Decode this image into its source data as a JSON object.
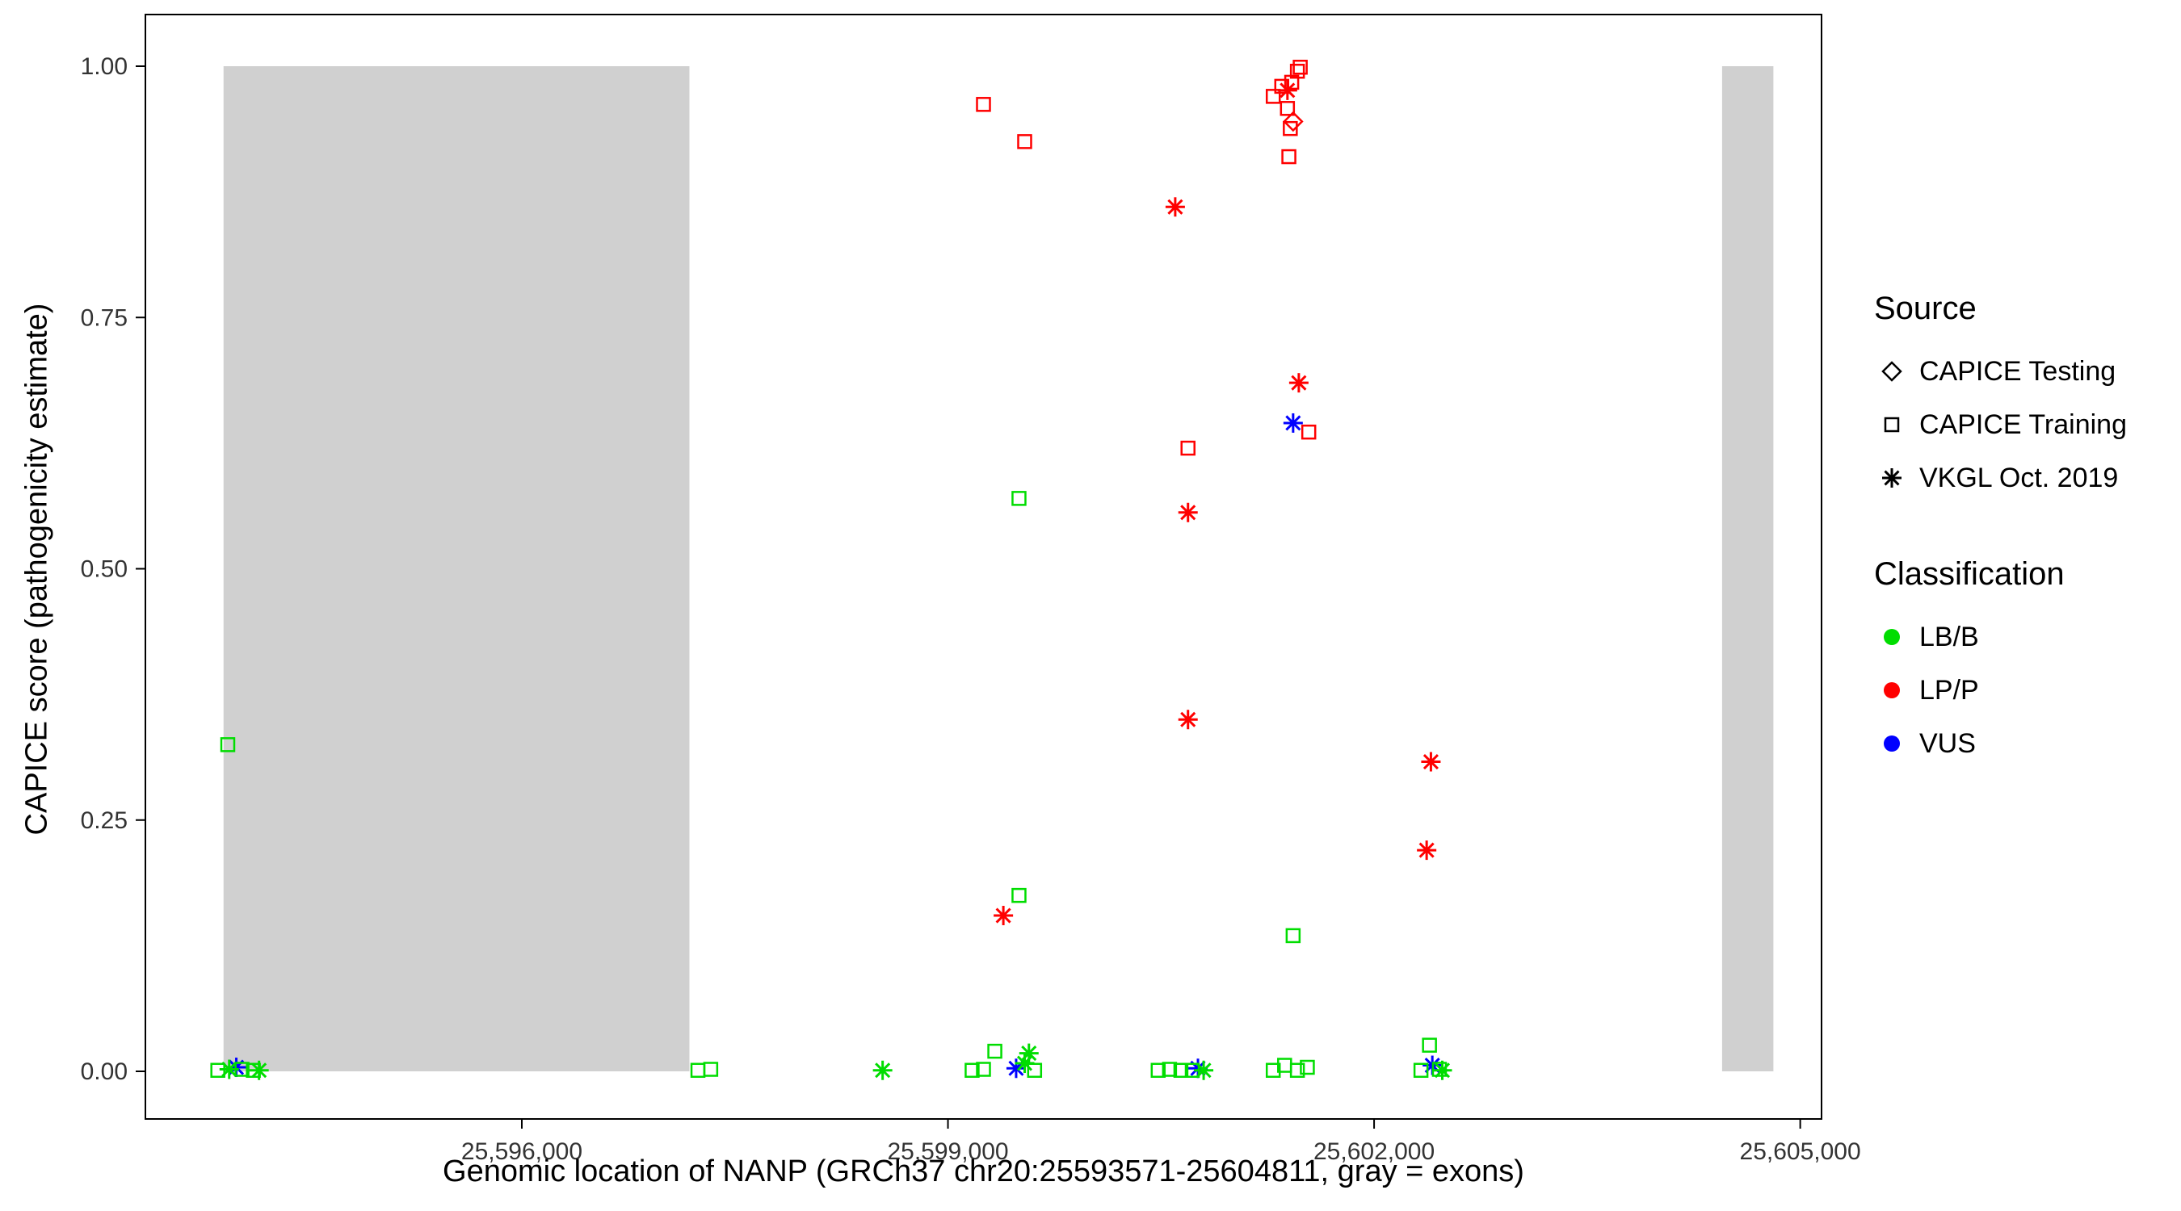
{
  "figure": {
    "background": "#ffffff",
    "panel_border_color": "#000000"
  },
  "chart_data": {
    "type": "scatter",
    "title": "",
    "xlabel": "Genomic location of NANP (GRCh37 chr20:25593571-25604811, gray = exons)",
    "ylabel": "CAPICE score (pathogenicity estimate)",
    "x_domain": [
      25593350,
      25605150
    ],
    "y_domain": [
      0,
      1
    ],
    "grid": "none",
    "legend_position": "right",
    "x_ticks": [
      {
        "value": 25596000,
        "label": "25,596,000"
      },
      {
        "value": 25599000,
        "label": "25,599,000"
      },
      {
        "value": 25602000,
        "label": "25,602,000"
      },
      {
        "value": 25605000,
        "label": "25,605,000"
      }
    ],
    "y_ticks": [
      {
        "value": 0.0,
        "label": "0.00"
      },
      {
        "value": 0.25,
        "label": "0.25"
      },
      {
        "value": 0.5,
        "label": "0.50"
      },
      {
        "value": 0.75,
        "label": "0.75"
      },
      {
        "value": 1.0,
        "label": "1.00"
      }
    ],
    "exon_color": "#d0d0d0",
    "exons": [
      {
        "start": 25593900,
        "end": 25597180
      },
      {
        "start": 25604450,
        "end": 25604811
      }
    ],
    "classification_colors": {
      "LB/B": "#00dd00",
      "LP/P": "#ff0000",
      "VUS": "#0000ff"
    },
    "source_shapes": {
      "CAPICE Testing": "diamond",
      "CAPICE Training": "square",
      "VKGL Oct. 2019": "asterisk"
    },
    "points": [
      {
        "x": 25599250,
        "y": 0.962,
        "classification": "LP/P",
        "source": "CAPICE Training"
      },
      {
        "x": 25599540,
        "y": 0.925,
        "classification": "LP/P",
        "source": "CAPICE Training"
      },
      {
        "x": 25601290,
        "y": 0.97,
        "classification": "LP/P",
        "source": "CAPICE Training"
      },
      {
        "x": 25601350,
        "y": 0.98,
        "classification": "LP/P",
        "source": "CAPICE Training"
      },
      {
        "x": 25601420,
        "y": 0.984,
        "classification": "LP/P",
        "source": "CAPICE Training"
      },
      {
        "x": 25601460,
        "y": 0.995,
        "classification": "LP/P",
        "source": "CAPICE Training"
      },
      {
        "x": 25601480,
        "y": 0.999,
        "classification": "LP/P",
        "source": "CAPICE Training"
      },
      {
        "x": 25601390,
        "y": 0.958,
        "classification": "LP/P",
        "source": "CAPICE Training"
      },
      {
        "x": 25601410,
        "y": 0.938,
        "classification": "LP/P",
        "source": "CAPICE Training"
      },
      {
        "x": 25601400,
        "y": 0.91,
        "classification": "LP/P",
        "source": "CAPICE Training"
      },
      {
        "x": 25600690,
        "y": 0.62,
        "classification": "LP/P",
        "source": "CAPICE Training"
      },
      {
        "x": 25601540,
        "y": 0.636,
        "classification": "LP/P",
        "source": "CAPICE Training"
      },
      {
        "x": 25601430,
        "y": 0.945,
        "classification": "LP/P",
        "source": "CAPICE Testing"
      },
      {
        "x": 25601390,
        "y": 0.976,
        "classification": "LP/P",
        "source": "VKGL Oct. 2019"
      },
      {
        "x": 25600600,
        "y": 0.86,
        "classification": "LP/P",
        "source": "VKGL Oct. 2019"
      },
      {
        "x": 25601470,
        "y": 0.685,
        "classification": "LP/P",
        "source": "VKGL Oct. 2019"
      },
      {
        "x": 25600690,
        "y": 0.556,
        "classification": "LP/P",
        "source": "VKGL Oct. 2019"
      },
      {
        "x": 25600690,
        "y": 0.35,
        "classification": "LP/P",
        "source": "VKGL Oct. 2019"
      },
      {
        "x": 25602400,
        "y": 0.308,
        "classification": "LP/P",
        "source": "VKGL Oct. 2019"
      },
      {
        "x": 25602370,
        "y": 0.22,
        "classification": "LP/P",
        "source": "VKGL Oct. 2019"
      },
      {
        "x": 25599390,
        "y": 0.155,
        "classification": "LP/P",
        "source": "VKGL Oct. 2019"
      },
      {
        "x": 25601430,
        "y": 0.645,
        "classification": "VUS",
        "source": "VKGL Oct. 2019"
      },
      {
        "x": 25593990,
        "y": 0.004,
        "classification": "VUS",
        "source": "VKGL Oct. 2019"
      },
      {
        "x": 25599480,
        "y": 0.003,
        "classification": "VUS",
        "source": "VKGL Oct. 2019"
      },
      {
        "x": 25600760,
        "y": 0.003,
        "classification": "VUS",
        "source": "VKGL Oct. 2019"
      },
      {
        "x": 25602410,
        "y": 0.006,
        "classification": "VUS",
        "source": "VKGL Oct. 2019"
      },
      {
        "x": 25593930,
        "y": 0.325,
        "classification": "LB/B",
        "source": "CAPICE Training"
      },
      {
        "x": 25599500,
        "y": 0.57,
        "classification": "LB/B",
        "source": "CAPICE Training"
      },
      {
        "x": 25599500,
        "y": 0.175,
        "classification": "LB/B",
        "source": "CAPICE Training"
      },
      {
        "x": 25601430,
        "y": 0.135,
        "classification": "LB/B",
        "source": "CAPICE Training"
      },
      {
        "x": 25602390,
        "y": 0.026,
        "classification": "LB/B",
        "source": "CAPICE Training"
      },
      {
        "x": 25593860,
        "y": 0.001,
        "classification": "LB/B",
        "source": "CAPICE Training"
      },
      {
        "x": 25594030,
        "y": 0.002,
        "classification": "LB/B",
        "source": "CAPICE Training"
      },
      {
        "x": 25594110,
        "y": 0.001,
        "classification": "LB/B",
        "source": "CAPICE Training"
      },
      {
        "x": 25597240,
        "y": 0.001,
        "classification": "LB/B",
        "source": "CAPICE Training"
      },
      {
        "x": 25597330,
        "y": 0.002,
        "classification": "LB/B",
        "source": "CAPICE Training"
      },
      {
        "x": 25599170,
        "y": 0.001,
        "classification": "LB/B",
        "source": "CAPICE Training"
      },
      {
        "x": 25599250,
        "y": 0.002,
        "classification": "LB/B",
        "source": "CAPICE Training"
      },
      {
        "x": 25599330,
        "y": 0.02,
        "classification": "LB/B",
        "source": "CAPICE Training"
      },
      {
        "x": 25599610,
        "y": 0.001,
        "classification": "LB/B",
        "source": "CAPICE Training"
      },
      {
        "x": 25600480,
        "y": 0.001,
        "classification": "LB/B",
        "source": "CAPICE Training"
      },
      {
        "x": 25600560,
        "y": 0.002,
        "classification": "LB/B",
        "source": "CAPICE Training"
      },
      {
        "x": 25600640,
        "y": 0.001,
        "classification": "LB/B",
        "source": "CAPICE Training"
      },
      {
        "x": 25600720,
        "y": 0.001,
        "classification": "LB/B",
        "source": "CAPICE Training"
      },
      {
        "x": 25601290,
        "y": 0.001,
        "classification": "LB/B",
        "source": "CAPICE Training"
      },
      {
        "x": 25601370,
        "y": 0.006,
        "classification": "LB/B",
        "source": "CAPICE Training"
      },
      {
        "x": 25601460,
        "y": 0.001,
        "classification": "LB/B",
        "source": "CAPICE Training"
      },
      {
        "x": 25601530,
        "y": 0.004,
        "classification": "LB/B",
        "source": "CAPICE Training"
      },
      {
        "x": 25602330,
        "y": 0.001,
        "classification": "LB/B",
        "source": "CAPICE Training"
      },
      {
        "x": 25602460,
        "y": 0.002,
        "classification": "LB/B",
        "source": "CAPICE Training"
      },
      {
        "x": 25593940,
        "y": 0.002,
        "classification": "LB/B",
        "source": "VKGL Oct. 2019"
      },
      {
        "x": 25594150,
        "y": 0.001,
        "classification": "LB/B",
        "source": "VKGL Oct. 2019"
      },
      {
        "x": 25598540,
        "y": 0.001,
        "classification": "LB/B",
        "source": "VKGL Oct. 2019"
      },
      {
        "x": 25599540,
        "y": 0.008,
        "classification": "LB/B",
        "source": "VKGL Oct. 2019"
      },
      {
        "x": 25599570,
        "y": 0.018,
        "classification": "LB/B",
        "source": "VKGL Oct. 2019"
      },
      {
        "x": 25600800,
        "y": 0.001,
        "classification": "LB/B",
        "source": "VKGL Oct. 2019"
      },
      {
        "x": 25602480,
        "y": 0.001,
        "classification": "LB/B",
        "source": "VKGL Oct. 2019"
      }
    ]
  },
  "legend": {
    "source": {
      "title": "Source",
      "items": [
        {
          "label": "CAPICE Testing",
          "shape": "diamond"
        },
        {
          "label": "CAPICE Training",
          "shape": "square"
        },
        {
          "label": "VKGL Oct. 2019",
          "shape": "asterisk"
        }
      ]
    },
    "classification": {
      "title": "Classification",
      "items": [
        {
          "label": "LB/B",
          "color": "#00dd00"
        },
        {
          "label": "LP/P",
          "color": "#ff0000"
        },
        {
          "label": "VUS",
          "color": "#0000ff"
        }
      ]
    }
  }
}
